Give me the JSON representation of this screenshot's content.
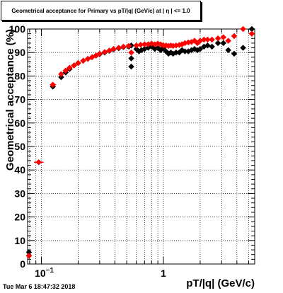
{
  "page": {
    "timestamp": "Tue Mar  6 18:47:32 2018"
  },
  "chart_data": {
    "type": "scatter",
    "title": "Geometrical acceptance for Primary vs pT/|q| (GeV/c) at | η | <= 1.0",
    "xlabel": "pT/|q| (GeV/c)",
    "ylabel": "Geometrical acceptance (%)",
    "xscale": "log",
    "xlim": [
      0.077,
      5.6
    ],
    "ylim": [
      0,
      100
    ],
    "grid": true,
    "x_ticks": [
      {
        "value": 0.1,
        "label": "10",
        "sup": "−1"
      },
      {
        "value": 1,
        "label": "1",
        "sup": ""
      }
    ],
    "y_ticks": [
      0,
      10,
      20,
      30,
      40,
      50,
      60,
      70,
      80,
      90,
      100
    ],
    "colors": {
      "series_red": "#ff0000",
      "series_black": "#000000"
    },
    "series": [
      {
        "color": "#000000",
        "points": [
          [
            0.079,
            5.0
          ],
          [
            0.079,
            3.5
          ],
          [
            0.095,
            43.3
          ],
          [
            0.124,
            75.5
          ],
          [
            0.145,
            79.5
          ],
          [
            0.158,
            81.5
          ],
          [
            0.17,
            83.0
          ],
          [
            0.185,
            84.5
          ],
          [
            0.2,
            85.5
          ],
          [
            0.22,
            86.5
          ],
          [
            0.24,
            87.3
          ],
          [
            0.26,
            88.0
          ],
          [
            0.28,
            88.7
          ],
          [
            0.3,
            89.3
          ],
          [
            0.33,
            90.0
          ],
          [
            0.36,
            90.7
          ],
          [
            0.39,
            91.3
          ],
          [
            0.43,
            91.8
          ],
          [
            0.47,
            92.3
          ],
          [
            0.52,
            92.5
          ],
          [
            0.545,
            87.5
          ],
          [
            0.545,
            84.0
          ],
          [
            0.545,
            93.0
          ],
          [
            0.6,
            91.5
          ],
          [
            0.63,
            90.5
          ],
          [
            0.66,
            91.0
          ],
          [
            0.7,
            91.5
          ],
          [
            0.75,
            92.0
          ],
          [
            0.8,
            92.5
          ],
          [
            0.85,
            91.5
          ],
          [
            0.9,
            92.0
          ],
          [
            0.95,
            91.0
          ],
          [
            1.0,
            92.0
          ],
          [
            1.05,
            90.5
          ],
          [
            1.1,
            89.5
          ],
          [
            1.15,
            90.0
          ],
          [
            1.2,
            89.5
          ],
          [
            1.27,
            90.0
          ],
          [
            1.35,
            90.0
          ],
          [
            1.42,
            91.0
          ],
          [
            1.5,
            90.5
          ],
          [
            1.6,
            90.5
          ],
          [
            1.7,
            91.0
          ],
          [
            1.8,
            91.5
          ],
          [
            1.9,
            91.0
          ],
          [
            2.0,
            91.5
          ],
          [
            2.15,
            92.5
          ],
          [
            2.3,
            93.0
          ],
          [
            2.5,
            92.5
          ],
          [
            2.8,
            94.0
          ],
          [
            3.1,
            94.0
          ],
          [
            3.4,
            91.0
          ],
          [
            3.8,
            89.5
          ],
          [
            4.5,
            92.0
          ],
          [
            5.3,
            100.0
          ]
        ]
      },
      {
        "color": "#ff0000",
        "points": [
          [
            0.079,
            3.5
          ],
          [
            0.095,
            43.3
          ],
          [
            0.124,
            76.3
          ],
          [
            0.145,
            80.8
          ],
          [
            0.158,
            82.3
          ],
          [
            0.17,
            83.5
          ],
          [
            0.185,
            84.5
          ],
          [
            0.2,
            85.5
          ],
          [
            0.22,
            86.5
          ],
          [
            0.24,
            87.3
          ],
          [
            0.26,
            88.0
          ],
          [
            0.28,
            88.7
          ],
          [
            0.3,
            89.5
          ],
          [
            0.33,
            90.2
          ],
          [
            0.36,
            90.8
          ],
          [
            0.39,
            91.5
          ],
          [
            0.43,
            92.0
          ],
          [
            0.47,
            92.5
          ],
          [
            0.52,
            92.8
          ],
          [
            0.545,
            90.0
          ],
          [
            0.6,
            93.0
          ],
          [
            0.65,
            93.3
          ],
          [
            0.7,
            93.5
          ],
          [
            0.75,
            93.5
          ],
          [
            0.8,
            93.8
          ],
          [
            0.85,
            93.5
          ],
          [
            0.9,
            93.8
          ],
          [
            0.95,
            93.5
          ],
          [
            1.0,
            93.0
          ],
          [
            1.05,
            93.0
          ],
          [
            1.1,
            92.8
          ],
          [
            1.15,
            93.0
          ],
          [
            1.2,
            92.8
          ],
          [
            1.27,
            93.0
          ],
          [
            1.35,
            93.2
          ],
          [
            1.42,
            93.5
          ],
          [
            1.5,
            94.0
          ],
          [
            1.6,
            94.3
          ],
          [
            1.7,
            94.5
          ],
          [
            1.8,
            95.0
          ],
          [
            1.9,
            94.0
          ],
          [
            2.0,
            95.0
          ],
          [
            2.15,
            95.5
          ],
          [
            2.3,
            95.5
          ],
          [
            2.5,
            95.5
          ],
          [
            2.8,
            96.0
          ],
          [
            3.1,
            96.5
          ],
          [
            3.4,
            95.0
          ],
          [
            3.8,
            97.0
          ],
          [
            4.5,
            100.0
          ],
          [
            5.3,
            98.0
          ]
        ]
      }
    ]
  }
}
